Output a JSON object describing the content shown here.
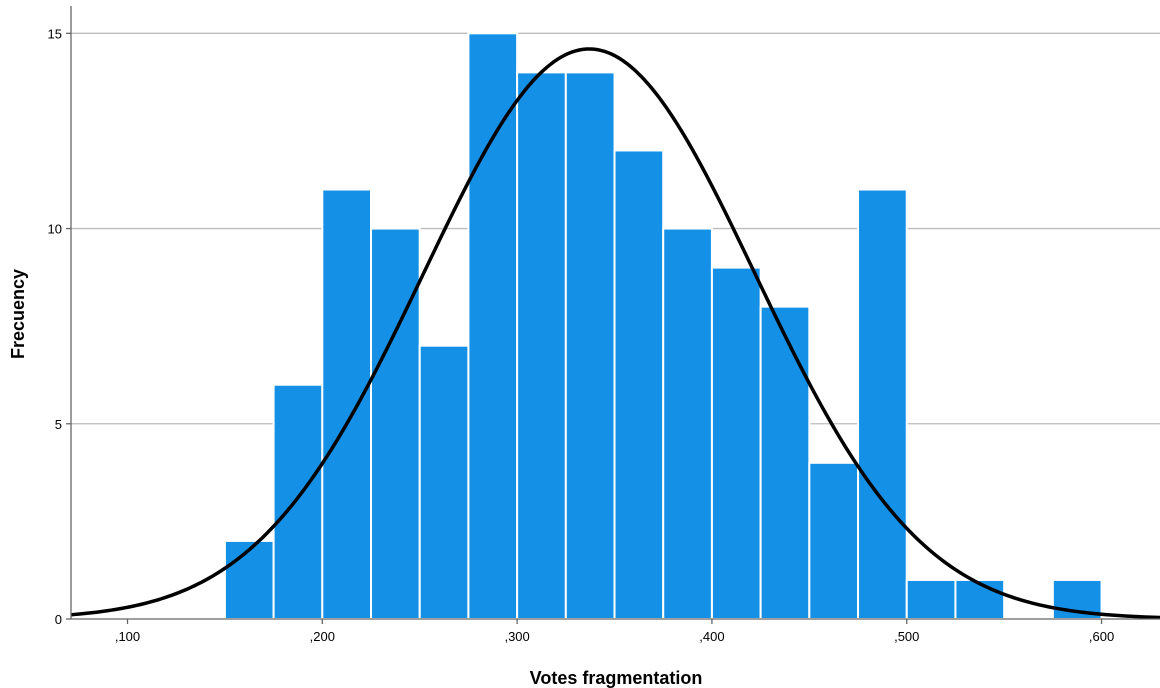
{
  "chart_data": {
    "type": "bar",
    "title": "",
    "xlabel": "Votes fragmentation",
    "ylabel": "Frecuency",
    "xlim": [
      0.071,
      0.63
    ],
    "ylim": [
      0,
      15.7
    ],
    "bin_width": 0.025,
    "bins": [
      {
        "start": 0.15,
        "end": 0.175,
        "value": 2
      },
      {
        "start": 0.175,
        "end": 0.2,
        "value": 6
      },
      {
        "start": 0.2,
        "end": 0.225,
        "value": 11
      },
      {
        "start": 0.225,
        "end": 0.25,
        "value": 10
      },
      {
        "start": 0.25,
        "end": 0.275,
        "value": 7
      },
      {
        "start": 0.275,
        "end": 0.3,
        "value": 15
      },
      {
        "start": 0.3,
        "end": 0.325,
        "value": 14
      },
      {
        "start": 0.325,
        "end": 0.35,
        "value": 14
      },
      {
        "start": 0.35,
        "end": 0.375,
        "value": 12
      },
      {
        "start": 0.375,
        "end": 0.4,
        "value": 10
      },
      {
        "start": 0.4,
        "end": 0.425,
        "value": 9
      },
      {
        "start": 0.425,
        "end": 0.45,
        "value": 8
      },
      {
        "start": 0.45,
        "end": 0.475,
        "value": 4
      },
      {
        "start": 0.475,
        "end": 0.5,
        "value": 11
      },
      {
        "start": 0.5,
        "end": 0.525,
        "value": 1
      },
      {
        "start": 0.525,
        "end": 0.55,
        "value": 1
      },
      {
        "start": 0.575,
        "end": 0.6,
        "value": 1
      }
    ],
    "x_ticks": [
      {
        "value": 0.1,
        "label": ",100"
      },
      {
        "value": 0.2,
        "label": ",200"
      },
      {
        "value": 0.3,
        "label": ",300"
      },
      {
        "value": 0.4,
        "label": ",400"
      },
      {
        "value": 0.5,
        "label": ",500"
      },
      {
        "value": 0.6,
        "label": ",600"
      }
    ],
    "y_ticks": [
      {
        "value": 0,
        "label": "0"
      },
      {
        "value": 5,
        "label": "5"
      },
      {
        "value": 10,
        "label": "10"
      },
      {
        "value": 15,
        "label": "15"
      }
    ],
    "normal_curve": {
      "mean": 0.337,
      "sd": 0.085,
      "peak": 14.6
    },
    "grid": {
      "horizontal": true,
      "vertical": false
    },
    "colors": {
      "bar": "#1490e6",
      "bar_edge": "#ffffff",
      "curve": "#000000",
      "grid": "#bdbdbd",
      "axis": "#666666"
    }
  }
}
